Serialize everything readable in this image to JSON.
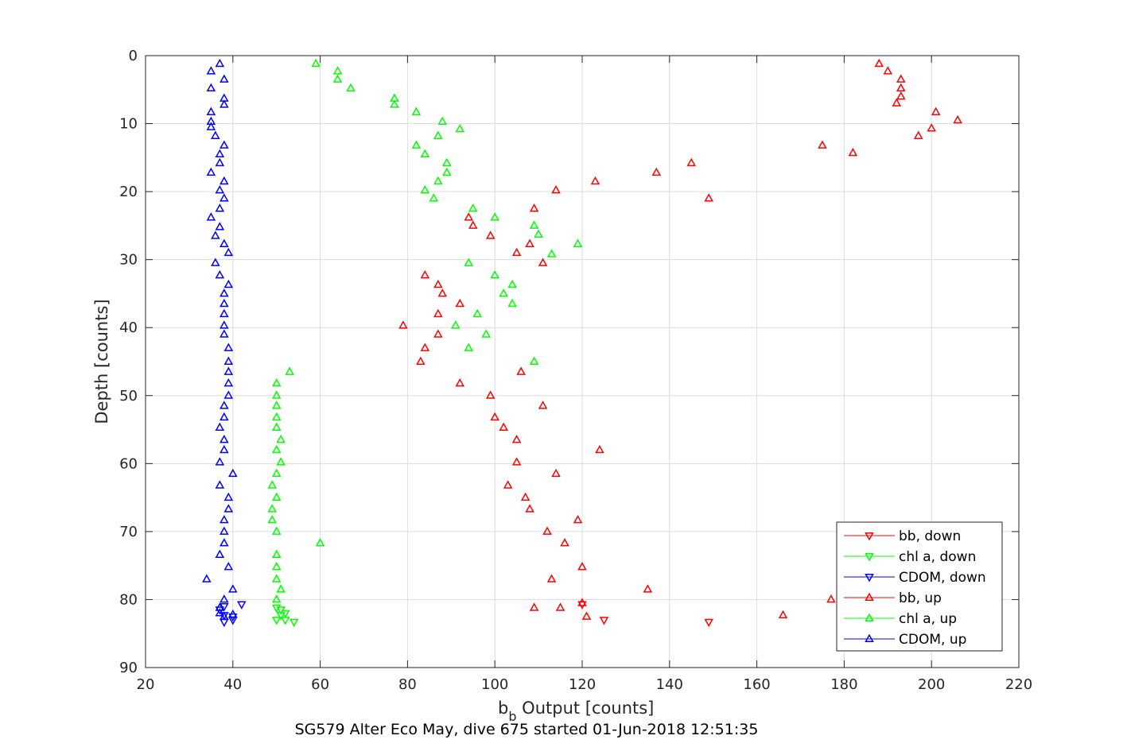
{
  "chart_data": {
    "type": "scatter",
    "xlabel": {
      "main": "b",
      "sub": "b",
      "rest": " Output [counts]"
    },
    "ylabel": "Depth [counts]",
    "caption": "SG579 Alter Eco May, dive 675 started 01-Jun-2018 12:51:35",
    "xlim": [
      20,
      220
    ],
    "ylim": [
      0,
      90
    ],
    "y_reversed": true,
    "grid": true,
    "legend_position": "bottom-right",
    "xticks": [
      "20",
      "40",
      "60",
      "80",
      "100",
      "120",
      "140",
      "160",
      "180",
      "200",
      "220"
    ],
    "yticks": [
      "0",
      "10",
      "20",
      "30",
      "40",
      "50",
      "60",
      "70",
      "80",
      "90"
    ],
    "series": [
      {
        "name": "bb, down",
        "color": "#ff0000",
        "marker": "triangle-down",
        "points": [
          [
            120,
            80.7
          ],
          [
            125,
            83.0
          ],
          [
            149,
            83.3
          ]
        ]
      },
      {
        "name": "chl a, down",
        "color": "#00ff00",
        "marker": "triangle-down",
        "points": [
          [
            50,
            81.2
          ],
          [
            51,
            81.5
          ],
          [
            52,
            82.0
          ],
          [
            51,
            82.3
          ],
          [
            52,
            83.0
          ],
          [
            54,
            83.3
          ],
          [
            50,
            83.0
          ]
        ]
      },
      {
        "name": "CDOM, down",
        "color": "#0000ff",
        "marker": "triangle-down",
        "points": [
          [
            38,
            81.0
          ],
          [
            42,
            80.7
          ],
          [
            37,
            81.5
          ],
          [
            38,
            82.3
          ],
          [
            40,
            82.5
          ],
          [
            40,
            83.0
          ],
          [
            38,
            83.3
          ]
        ]
      },
      {
        "name": "bb, up",
        "color": "#ff0000",
        "marker": "triangle-up",
        "points": [
          [
            188,
            1.2
          ],
          [
            190,
            2.3
          ],
          [
            193,
            3.5
          ],
          [
            193,
            4.8
          ],
          [
            193,
            6.0
          ],
          [
            192,
            7.0
          ],
          [
            201,
            8.3
          ],
          [
            206,
            9.5
          ],
          [
            200,
            10.7
          ],
          [
            197,
            11.8
          ],
          [
            175,
            13.2
          ],
          [
            182,
            14.3
          ],
          [
            145,
            15.8
          ],
          [
            137,
            17.2
          ],
          [
            123,
            18.5
          ],
          [
            114,
            19.8
          ],
          [
            149,
            21.0
          ],
          [
            109,
            22.5
          ],
          [
            94,
            23.8
          ],
          [
            95,
            25.0
          ],
          [
            99,
            26.5
          ],
          [
            108,
            27.7
          ],
          [
            105,
            29.0
          ],
          [
            111,
            30.5
          ],
          [
            84,
            32.3
          ],
          [
            87,
            33.7
          ],
          [
            88,
            35.0
          ],
          [
            92,
            36.5
          ],
          [
            87,
            38.0
          ],
          [
            79,
            39.7
          ],
          [
            87,
            41.0
          ],
          [
            84,
            43.0
          ],
          [
            83,
            45.0
          ],
          [
            106,
            46.5
          ],
          [
            92,
            48.2
          ],
          [
            99,
            50.0
          ],
          [
            111,
            51.5
          ],
          [
            100,
            53.2
          ],
          [
            102,
            54.7
          ],
          [
            105,
            56.5
          ],
          [
            124,
            58.0
          ],
          [
            105,
            59.8
          ],
          [
            114,
            61.5
          ],
          [
            103,
            63.2
          ],
          [
            107,
            65.0
          ],
          [
            108,
            66.7
          ],
          [
            119,
            68.3
          ],
          [
            112,
            70.0
          ],
          [
            116,
            71.7
          ],
          [
            120,
            75.2
          ],
          [
            113,
            77.0
          ],
          [
            135,
            78.5
          ],
          [
            177,
            80.0
          ],
          [
            120,
            80.5
          ],
          [
            115,
            81.2
          ],
          [
            109,
            81.2
          ],
          [
            121,
            82.5
          ],
          [
            166,
            82.3
          ]
        ]
      },
      {
        "name": "chl a, up",
        "color": "#00ff00",
        "marker": "triangle-up",
        "points": [
          [
            59,
            1.2
          ],
          [
            64,
            2.3
          ],
          [
            64,
            3.5
          ],
          [
            67,
            4.8
          ],
          [
            77,
            6.3
          ],
          [
            77,
            7.2
          ],
          [
            82,
            8.3
          ],
          [
            88,
            9.7
          ],
          [
            92,
            10.8
          ],
          [
            87,
            11.8
          ],
          [
            82,
            13.2
          ],
          [
            84,
            14.5
          ],
          [
            89,
            15.8
          ],
          [
            89,
            17.2
          ],
          [
            87,
            18.5
          ],
          [
            84,
            19.8
          ],
          [
            86,
            21.0
          ],
          [
            95,
            22.5
          ],
          [
            100,
            23.8
          ],
          [
            109,
            25.0
          ],
          [
            110,
            26.3
          ],
          [
            119,
            27.7
          ],
          [
            113,
            29.2
          ],
          [
            94,
            30.5
          ],
          [
            100,
            32.3
          ],
          [
            104,
            33.7
          ],
          [
            102,
            35.0
          ],
          [
            104,
            36.5
          ],
          [
            96,
            38.0
          ],
          [
            91,
            39.7
          ],
          [
            98,
            41.0
          ],
          [
            94,
            43.0
          ],
          [
            109,
            45.0
          ],
          [
            53,
            46.5
          ],
          [
            50,
            48.2
          ],
          [
            50,
            50.0
          ],
          [
            50,
            51.5
          ],
          [
            50,
            53.2
          ],
          [
            50,
            54.7
          ],
          [
            51,
            56.5
          ],
          [
            50,
            58.0
          ],
          [
            51,
            59.8
          ],
          [
            50,
            61.5
          ],
          [
            49,
            63.2
          ],
          [
            50,
            65.0
          ],
          [
            49,
            66.7
          ],
          [
            49,
            68.3
          ],
          [
            50,
            70.0
          ],
          [
            60,
            71.7
          ],
          [
            50,
            73.4
          ],
          [
            50,
            75.2
          ],
          [
            50,
            77.0
          ],
          [
            51,
            78.5
          ],
          [
            50,
            80.0
          ]
        ]
      },
      {
        "name": "CDOM, up",
        "color": "#0000ff",
        "marker": "triangle-up",
        "points": [
          [
            37,
            1.2
          ],
          [
            35,
            2.3
          ],
          [
            38,
            3.5
          ],
          [
            35,
            4.8
          ],
          [
            38,
            6.3
          ],
          [
            38,
            7.2
          ],
          [
            35,
            8.3
          ],
          [
            35,
            9.7
          ],
          [
            35,
            10.5
          ],
          [
            36,
            11.8
          ],
          [
            38,
            13.2
          ],
          [
            37,
            14.5
          ],
          [
            37,
            15.8
          ],
          [
            35,
            17.2
          ],
          [
            38,
            18.5
          ],
          [
            37,
            19.8
          ],
          [
            38,
            21.0
          ],
          [
            37,
            22.5
          ],
          [
            35,
            23.8
          ],
          [
            37,
            25.2
          ],
          [
            36,
            26.5
          ],
          [
            38,
            27.7
          ],
          [
            39,
            29.0
          ],
          [
            36,
            30.5
          ],
          [
            37,
            32.3
          ],
          [
            39,
            33.7
          ],
          [
            38,
            35.0
          ],
          [
            38,
            36.5
          ],
          [
            38,
            38.0
          ],
          [
            38,
            39.7
          ],
          [
            38,
            41.0
          ],
          [
            39,
            43.0
          ],
          [
            39,
            45.0
          ],
          [
            39,
            46.5
          ],
          [
            39,
            48.2
          ],
          [
            39,
            50.0
          ],
          [
            38,
            51.5
          ],
          [
            38,
            53.2
          ],
          [
            37,
            54.7
          ],
          [
            38,
            56.5
          ],
          [
            38,
            58.0
          ],
          [
            37,
            59.8
          ],
          [
            40,
            61.5
          ],
          [
            37,
            63.2
          ],
          [
            39,
            65.0
          ],
          [
            39,
            66.7
          ],
          [
            38,
            68.3
          ],
          [
            38,
            70.0
          ],
          [
            38,
            71.7
          ],
          [
            37,
            73.4
          ],
          [
            39,
            75.2
          ],
          [
            34,
            77.0
          ],
          [
            40,
            78.5
          ],
          [
            38,
            80.0
          ],
          [
            37,
            81.2
          ],
          [
            37,
            82.0
          ],
          [
            38,
            82.5
          ],
          [
            40,
            82.2
          ]
        ]
      }
    ]
  }
}
